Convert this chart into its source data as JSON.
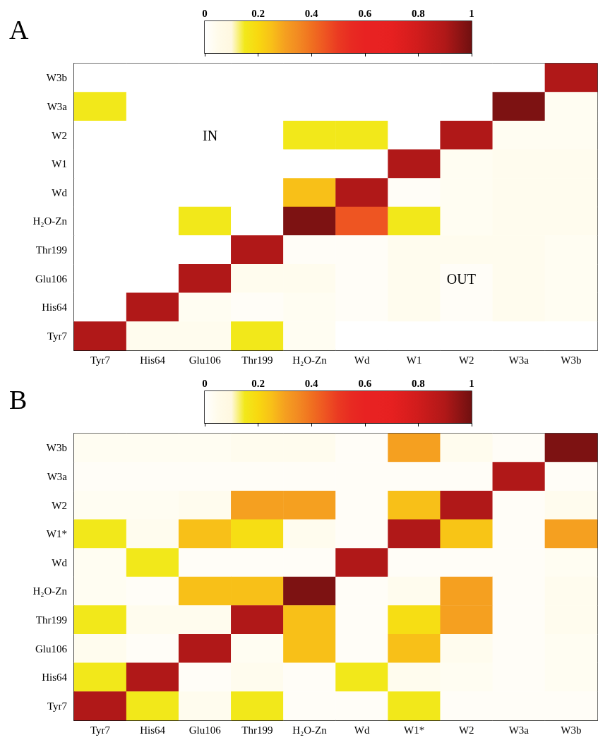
{
  "chart_data": [
    {
      "type": "heatmap",
      "title": "A",
      "categories": [
        "Tyr7",
        "His64",
        "Glu106",
        "Thr199",
        "H₂O-Zn",
        "Wd",
        "W1",
        "W2",
        "W3a",
        "W3b"
      ],
      "y_categories": [
        "W3b",
        "W3a",
        "W2",
        "W1",
        "Wd",
        "H₂O-Zn",
        "Thr199",
        "Glu106",
        "His64",
        "Tyr7"
      ],
      "cells": [
        [
          0,
          0,
          0,
          0,
          0,
          0,
          0,
          0,
          0,
          0.9
        ],
        [
          0.15,
          0,
          0,
          0,
          0,
          0,
          0,
          0,
          0.98,
          0.03
        ],
        [
          0,
          0,
          0,
          0,
          0.15,
          0.15,
          0,
          0.9,
          0.03,
          0.03
        ],
        [
          0,
          0,
          0,
          0,
          0,
          0,
          0.9,
          0.03,
          0.04,
          0.04
        ],
        [
          0,
          0,
          0,
          0,
          0.25,
          0.9,
          0.02,
          0.03,
          0.04,
          0.04
        ],
        [
          0,
          0,
          0.15,
          0,
          0.98,
          0.45,
          0.15,
          0.03,
          0.04,
          0.04
        ],
        [
          0,
          0,
          0,
          0.9,
          0.02,
          0.02,
          0.04,
          0.04,
          0.04,
          0.03
        ],
        [
          0,
          0,
          0.9,
          0.04,
          0.04,
          0.02,
          0.04,
          0.02,
          0.04,
          0.03
        ],
        [
          0,
          0.9,
          0.03,
          0.02,
          0.03,
          0.02,
          0.04,
          0.02,
          0.04,
          0.03
        ],
        [
          0.9,
          0.04,
          0.04,
          0.15,
          0.03,
          0,
          0,
          0,
          0,
          0
        ]
      ],
      "clim": [
        0,
        1
      ],
      "cticks": [
        0,
        0.2,
        0.4,
        0.6,
        0.8,
        1
      ],
      "annotations": [
        "IN",
        "OUT"
      ]
    },
    {
      "type": "heatmap",
      "title": "B",
      "categories": [
        "Tyr7",
        "His64",
        "Glu106",
        "Thr199",
        "H₂O-Zn",
        "Wd",
        "W1*",
        "W2",
        "W3a",
        "W3b"
      ],
      "y_categories": [
        "W3b",
        "W3a",
        "W2",
        "W1*",
        "Wd",
        "H₂O-Zn",
        "Thr199",
        "Glu106",
        "His64",
        "Tyr7"
      ],
      "cells": [
        [
          0.03,
          0.03,
          0.03,
          0.04,
          0.04,
          0.02,
          0.3,
          0.04,
          0.02,
          0.98
        ],
        [
          0.02,
          0.02,
          0.02,
          0.02,
          0.02,
          0.02,
          0.02,
          0.02,
          0.9,
          0.02
        ],
        [
          0.03,
          0.03,
          0.04,
          0.3,
          0.3,
          0.02,
          0.25,
          0.9,
          0.02,
          0.04
        ],
        [
          0.15,
          0.04,
          0.25,
          0.18,
          0.04,
          0.02,
          0.9,
          0.24,
          0.02,
          0.3
        ],
        [
          0.03,
          0.15,
          0.02,
          0.02,
          0.02,
          0.9,
          0.02,
          0.02,
          0.02,
          0.03
        ],
        [
          0.03,
          0.02,
          0.25,
          0.25,
          0.98,
          0.02,
          0.04,
          0.3,
          0.02,
          0.04
        ],
        [
          0.15,
          0.04,
          0.04,
          0.9,
          0.25,
          0.02,
          0.18,
          0.3,
          0.02,
          0.04
        ],
        [
          0.04,
          0.02,
          0.9,
          0.03,
          0.25,
          0.02,
          0.25,
          0.04,
          0.02,
          0.03
        ],
        [
          0.15,
          0.9,
          0.02,
          0.04,
          0.02,
          0.15,
          0.04,
          0.03,
          0.02,
          0.03
        ],
        [
          0.9,
          0.15,
          0.04,
          0.15,
          0.02,
          0.02,
          0.15,
          0.02,
          0.02,
          0.02
        ]
      ],
      "clim": [
        0,
        1
      ],
      "cticks": [
        0,
        0.2,
        0.4,
        0.6,
        0.8,
        1
      ]
    }
  ]
}
